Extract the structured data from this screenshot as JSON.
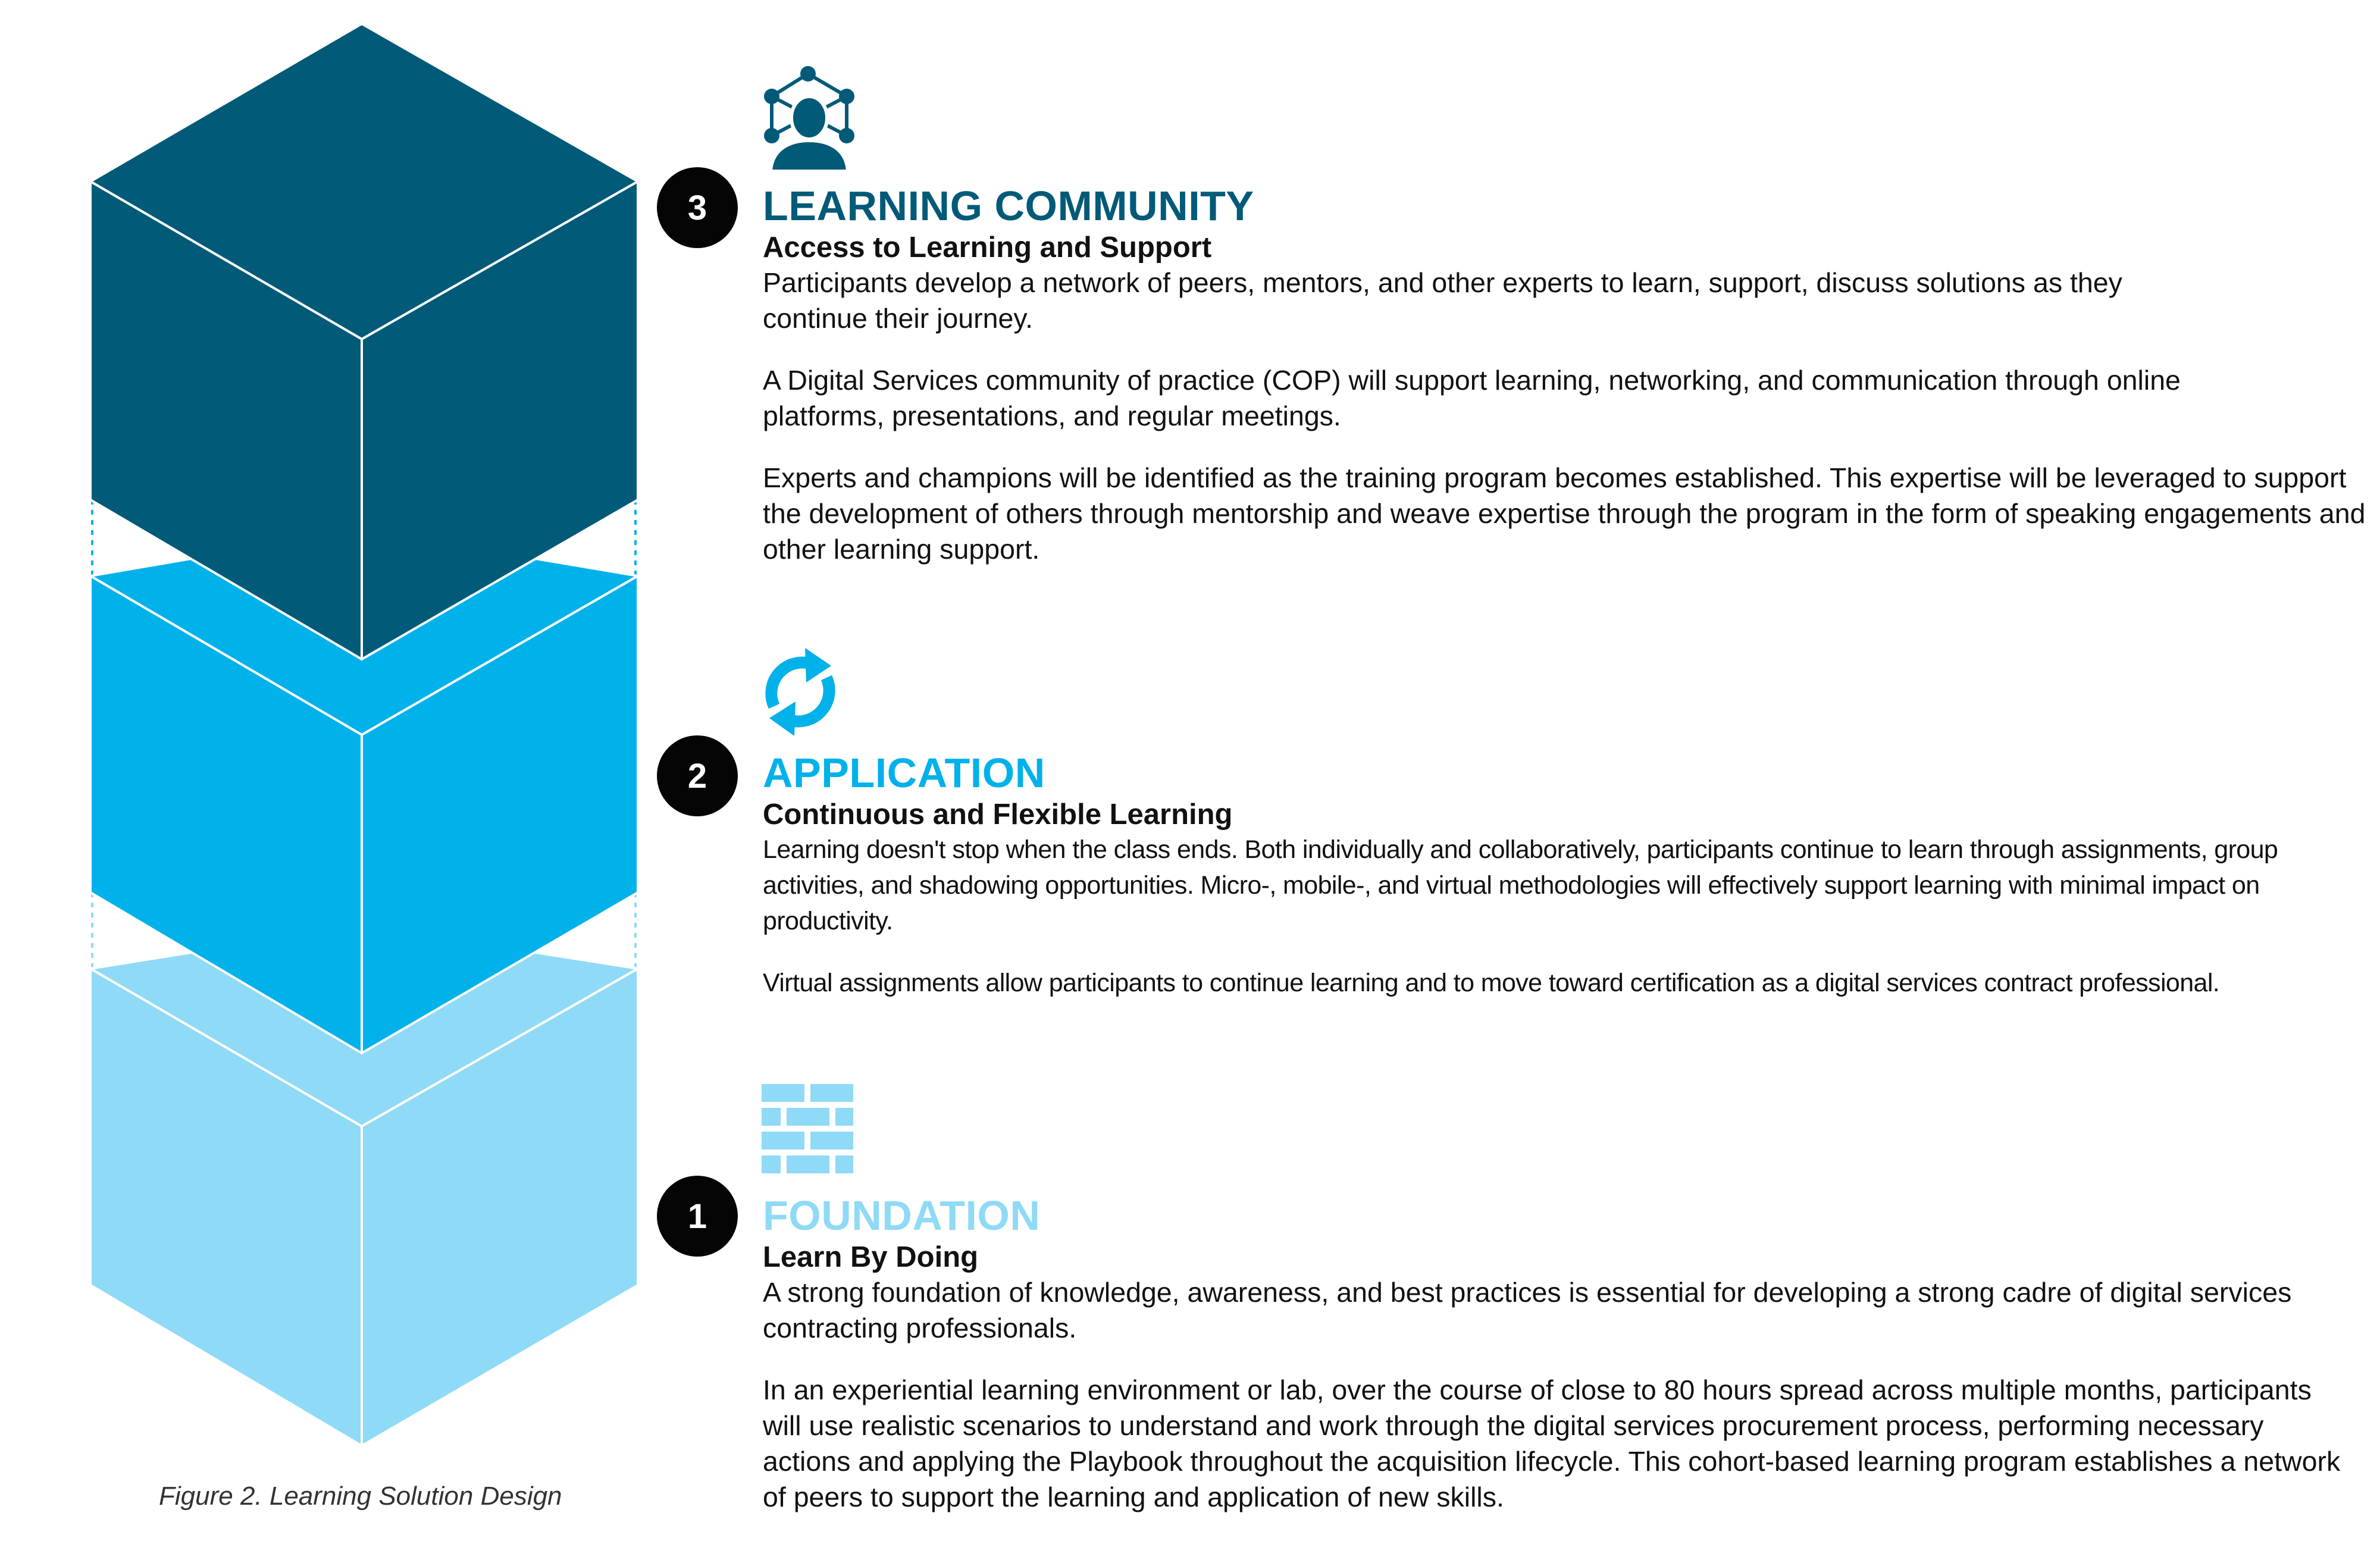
{
  "colors": {
    "dark": "#005a78",
    "mid": "#00b1ea",
    "light": "#8fdaf6",
    "badge": "#050505",
    "text": "#111111"
  },
  "caption": "Figure 2. Learning Solution Design",
  "sections": [
    {
      "number": "3",
      "icon": "network-people-icon",
      "title": "LEARNING COMMUNITY",
      "subtitle": "Access to Learning and Support",
      "paragraphs": [
        "Participants develop a network of peers, mentors, and other experts to learn, support, discuss solutions as they continue their journey.",
        "A Digital Services community of practice (COP) will support learning, networking, and communication through online platforms, presentations, and regular meetings.",
        "Experts and champions will be identified as the training program becomes established. This expertise will be leveraged to support the development of others through mentorship and weave expertise through the program in the form of speaking engagements and other learning support."
      ]
    },
    {
      "number": "2",
      "icon": "refresh-cycle-icon",
      "title": "APPLICATION",
      "subtitle": "Continuous and Flexible Learning",
      "paragraphs": [
        "Learning doesn't stop when the class ends. Both individually and collaboratively, participants continue to learn through assignments, group activities, and shadowing opportunities. Micro-, mobile-, and virtual methodologies will effectively support learning with minimal impact on productivity.",
        "Virtual assignments allow participants to continue learning and to move toward certification as a digital services contract professional."
      ]
    },
    {
      "number": "1",
      "icon": "brick-wall-icon",
      "title": "FOUNDATION",
      "subtitle": "Learn By Doing",
      "paragraphs": [
        "A strong foundation of knowledge, awareness, and best practices is essential for developing a strong cadre of digital services contracting professionals.",
        "In an experiential learning environment or lab, over the course of close to 80 hours spread across multiple months, participants will use realistic scenarios to understand and work through the digital services procurement process, performing necessary actions and applying the Playbook throughout the acquisition lifecycle. This cohort-based learning program establishes a network of peers to support the learning and application of new skills."
      ]
    }
  ]
}
